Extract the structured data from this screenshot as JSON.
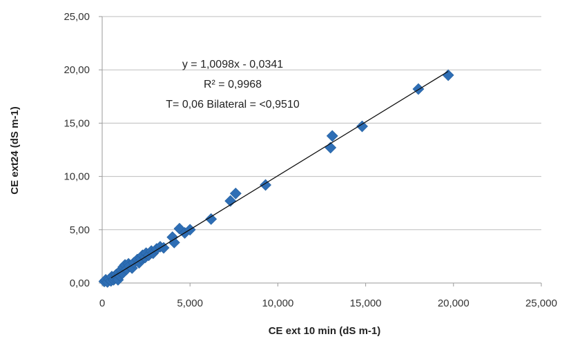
{
  "chart_data": {
    "type": "scatter",
    "title": "",
    "xlabel": "CE ext 10 min (dS m-1)",
    "ylabel": "CE ext24 (dS m-1)",
    "xlim": [
      0,
      25000
    ],
    "ylim": [
      0,
      25
    ],
    "xticks": [
      "0",
      "5,000",
      "10,000",
      "15,000",
      "20,000",
      "25,000"
    ],
    "yticks": [
      "0,00",
      "5,00",
      "10,00",
      "15,00",
      "20,00",
      "25,00"
    ],
    "grid": {
      "horizontal": true,
      "vertical": false
    },
    "legend": "none",
    "marker_color": "#2E6EB5",
    "trendline_color": "#111111",
    "annotations": [
      "y = 1,0098x - 0,0341",
      "R² = 0,9968",
      "T= 0,06 Bilateral = <0,9510"
    ],
    "trendline": {
      "slope": 1.0098,
      "intercept": -0.0341,
      "x_range": [
        500,
        19700
      ]
    },
    "points": [
      {
        "x": 120,
        "y": 0.15
      },
      {
        "x": 200,
        "y": 0.3
      },
      {
        "x": 300,
        "y": 0.1
      },
      {
        "x": 400,
        "y": 0.35
      },
      {
        "x": 500,
        "y": 0.2
      },
      {
        "x": 550,
        "y": 0.6
      },
      {
        "x": 650,
        "y": 0.3
      },
      {
        "x": 700,
        "y": 0.45
      },
      {
        "x": 800,
        "y": 0.8
      },
      {
        "x": 850,
        "y": 0.55
      },
      {
        "x": 900,
        "y": 0.3
      },
      {
        "x": 950,
        "y": 1.0
      },
      {
        "x": 1000,
        "y": 0.7
      },
      {
        "x": 1100,
        "y": 1.2
      },
      {
        "x": 1150,
        "y": 0.9
      },
      {
        "x": 1200,
        "y": 1.5
      },
      {
        "x": 1300,
        "y": 1.7
      },
      {
        "x": 1400,
        "y": 1.3
      },
      {
        "x": 1500,
        "y": 1.8
      },
      {
        "x": 1550,
        "y": 1.6
      },
      {
        "x": 1700,
        "y": 1.4
      },
      {
        "x": 1800,
        "y": 1.9
      },
      {
        "x": 2000,
        "y": 2.2
      },
      {
        "x": 2100,
        "y": 1.9
      },
      {
        "x": 2200,
        "y": 2.3
      },
      {
        "x": 2300,
        "y": 2.6
      },
      {
        "x": 2450,
        "y": 2.4
      },
      {
        "x": 2500,
        "y": 2.8
      },
      {
        "x": 2650,
        "y": 2.6
      },
      {
        "x": 2800,
        "y": 3.0
      },
      {
        "x": 2900,
        "y": 2.8
      },
      {
        "x": 3100,
        "y": 3.2
      },
      {
        "x": 3300,
        "y": 3.4
      },
      {
        "x": 3500,
        "y": 3.3
      },
      {
        "x": 4000,
        "y": 4.3
      },
      {
        "x": 4100,
        "y": 3.8
      },
      {
        "x": 4400,
        "y": 5.1
      },
      {
        "x": 4700,
        "y": 4.7
      },
      {
        "x": 5000,
        "y": 5.0
      },
      {
        "x": 6200,
        "y": 6.0
      },
      {
        "x": 7300,
        "y": 7.7
      },
      {
        "x": 7600,
        "y": 8.4
      },
      {
        "x": 9300,
        "y": 9.2
      },
      {
        "x": 13000,
        "y": 12.7
      },
      {
        "x": 13100,
        "y": 13.8
      },
      {
        "x": 14800,
        "y": 14.7
      },
      {
        "x": 18000,
        "y": 18.2
      },
      {
        "x": 19700,
        "y": 19.5
      }
    ]
  }
}
